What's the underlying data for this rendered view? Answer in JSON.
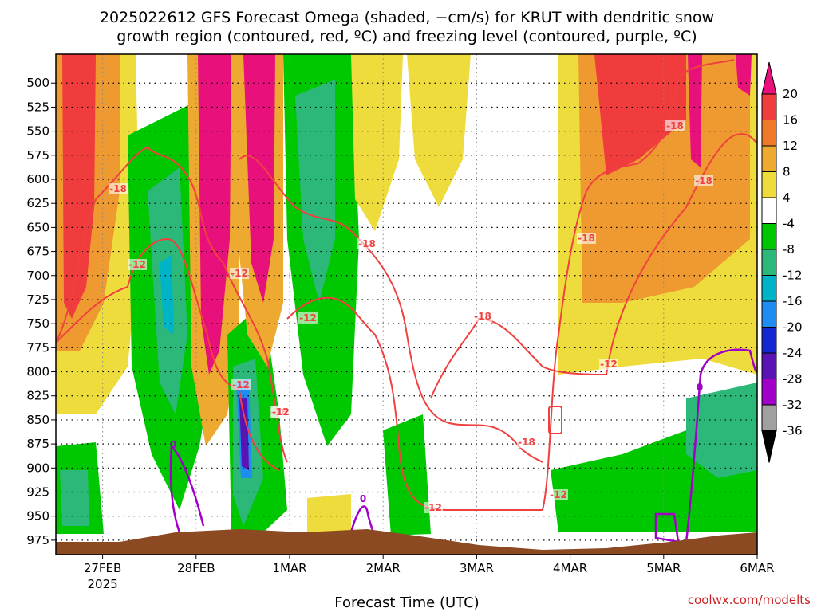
{
  "chart_data": {
    "type": "heatmap",
    "title_line1": "2025022612 GFS Forecast Omega (shaded, −cm/s) for KRUT with dendritic snow",
    "title_line2": "growth region (contoured, red, ºC) and freezing level (contoured, purple, ºC)",
    "xlabel": "Forecast Time (UTC)",
    "credit": "coolwx.com/modelts",
    "x_ticks": [
      {
        "label": "27FEB",
        "sub": "2025",
        "day": 1
      },
      {
        "label": "28FEB",
        "sub": "",
        "day": 2
      },
      {
        "label": "1MAR",
        "sub": "",
        "day": 3
      },
      {
        "label": "2MAR",
        "sub": "",
        "day": 4
      },
      {
        "label": "3MAR",
        "sub": "",
        "day": 5
      },
      {
        "label": "4MAR",
        "sub": "",
        "day": 6
      },
      {
        "label": "5MAR",
        "sub": "",
        "day": 7
      },
      {
        "label": "6MAR",
        "sub": "",
        "day": 8
      }
    ],
    "x_range_days": [
      0.5,
      8
    ],
    "y_ticks": [
      500,
      525,
      550,
      575,
      600,
      625,
      650,
      675,
      700,
      725,
      750,
      775,
      800,
      825,
      850,
      875,
      900,
      925,
      950,
      975
    ],
    "y_range_hpa": [
      470,
      990
    ],
    "colorbar": {
      "labels": [
        "20",
        "16",
        "12",
        "8",
        "4",
        "-4",
        "-8",
        "-12",
        "-16",
        "-20",
        "-24",
        "-28",
        "-32",
        "-36"
      ],
      "colors": [
        "#e8107a",
        "#f03c3c",
        "#ee7a2a",
        "#eeaa30",
        "#eedc3c",
        "#ffffff",
        "#00c800",
        "#2cb878",
        "#00b4c8",
        "#1e8cf0",
        "#1428d2",
        "#5a14b4",
        "#a000c8",
        "#a0a0a0",
        "#000000"
      ]
    },
    "contour_labels": {
      "dgz": [
        "-18",
        "-12",
        "-12",
        "-12",
        "-12",
        "-18",
        "-18",
        "-18",
        "-18",
        "-18",
        "-12",
        "-12",
        "-18",
        "-12",
        "-18",
        "-12"
      ],
      "freezing": [
        "0",
        "0",
        "0"
      ]
    }
  }
}
